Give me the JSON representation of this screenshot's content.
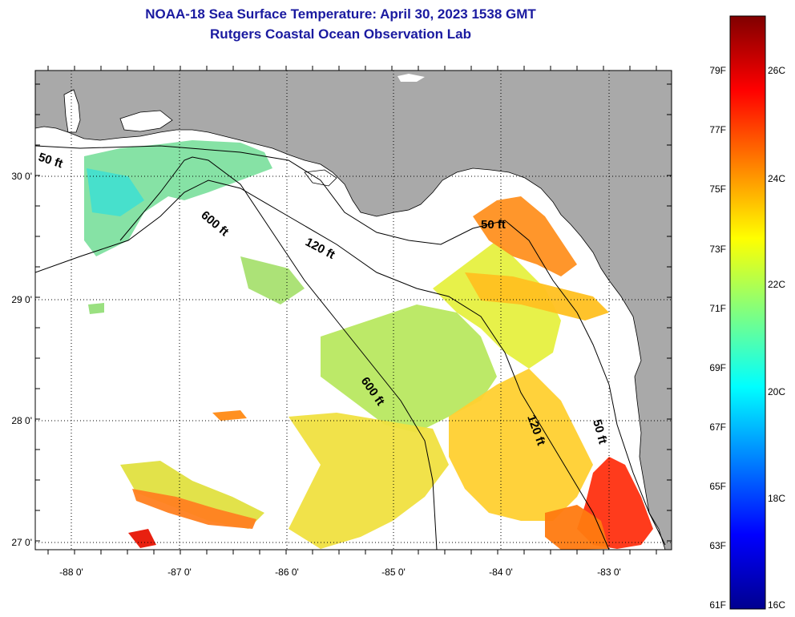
{
  "header": {
    "title_line1": "NOAA-18 Sea Surface Temperature:  April 30, 2023 1538 GMT",
    "title_line2": "Rutgers Coastal Ocean Observation Lab"
  },
  "map": {
    "latitude_labels": [
      "30 0'",
      "29 0'",
      "28 0'",
      "27 0'"
    ],
    "longitude_labels": [
      "-88 0'",
      "-87 0'",
      "-86 0'",
      "-85 0'",
      "-84 0'",
      "-83 0'"
    ],
    "contour_labels": [
      "50 ft",
      "600 ft",
      "120 ft",
      "50 ft",
      "600 ft",
      "120 ft",
      "50 ft"
    ],
    "land_color": "#a9a9a9",
    "ocean_color": "#ffffff"
  },
  "colorbar": {
    "fahrenheit_labels": [
      "79F",
      "77F",
      "75F",
      "73F",
      "71F",
      "69F",
      "67F",
      "65F",
      "63F",
      "61F"
    ],
    "celsius_labels": [
      "26C",
      "24C",
      "22C",
      "20C",
      "18C",
      "16C"
    ],
    "gradient_colors": [
      "#800000",
      "#ff0000",
      "#ff8000",
      "#ffff00",
      "#80ff80",
      "#00ffff",
      "#0080ff",
      "#0000ff",
      "#00008f"
    ]
  }
}
